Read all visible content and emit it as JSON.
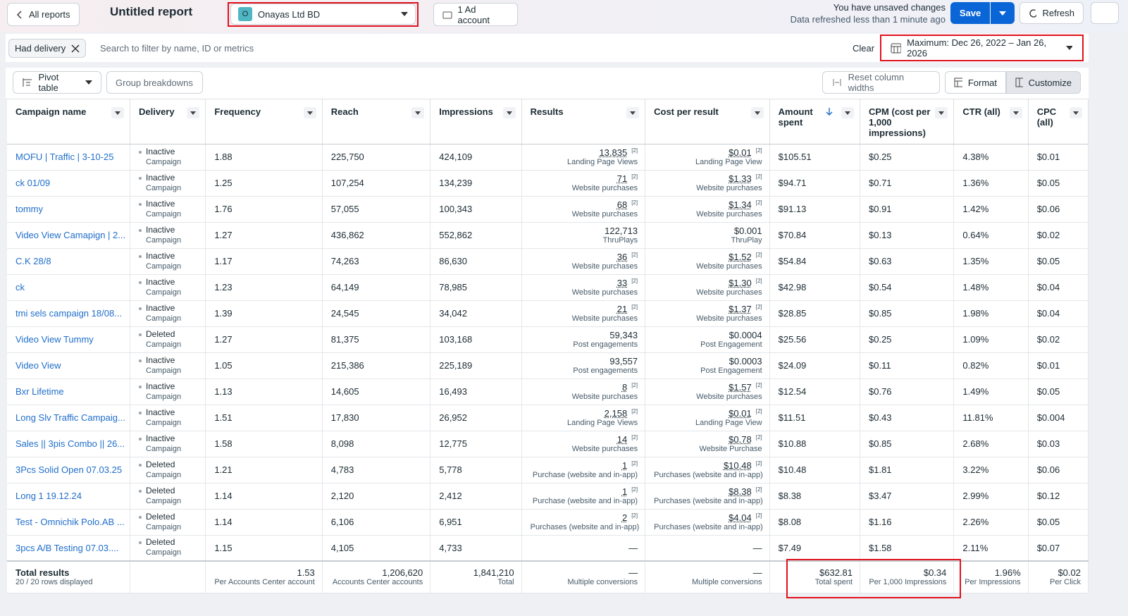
{
  "header": {
    "back": "All reports",
    "title": "Untitled report",
    "account_badge": "O",
    "account": "Onayas Ltd BD",
    "ad_account": "1 Ad account",
    "unsaved": "You have unsaved changes",
    "refreshed": "Data refreshed less than 1 minute ago",
    "save": "Save",
    "refresh": "Refresh"
  },
  "filter": {
    "chip": "Had delivery",
    "placeholder": "Search to filter by name, ID or metrics",
    "clear": "Clear",
    "date": "Maximum: Dec 26, 2022 – Jan 26, 2026"
  },
  "toolbar": {
    "pivot": "Pivot table",
    "group": "Group breakdowns",
    "reset": "Reset column widths",
    "format": "Format",
    "customize": "Customize"
  },
  "table": {
    "columns": [
      "Campaign name",
      "Delivery",
      "Frequency",
      "Reach",
      "Impressions",
      "Results",
      "Cost per result",
      "Amount spent",
      "CPM (cost per 1,000 impressions)",
      "CTR (all)",
      "CPC (all)"
    ],
    "rows": [
      {
        "name": "MOFU | Traffic | 3-10-25",
        "delivery": "Inactive",
        "delivery_sub": "Campaign",
        "frequency": "1.88",
        "reach": "225,750",
        "impressions": "424,109",
        "results": {
          "value": "13,835",
          "note": "[2]",
          "label": "Landing Page Views"
        },
        "cost": {
          "value": "$0.01",
          "note": "[2]",
          "label": "Landing Page View"
        },
        "amount": "$105.51",
        "cpm": "$0.25",
        "ctr": "4.38%",
        "cpc": "$0.01"
      },
      {
        "name": "ck 01/09",
        "delivery": "Inactive",
        "delivery_sub": "Campaign",
        "frequency": "1.25",
        "reach": "107,254",
        "impressions": "134,239",
        "results": {
          "value": "71",
          "note": "[2]",
          "label": "Website purchases"
        },
        "cost": {
          "value": "$1.33",
          "note": "[2]",
          "label": "Website purchases"
        },
        "amount": "$94.71",
        "cpm": "$0.71",
        "ctr": "1.36%",
        "cpc": "$0.05"
      },
      {
        "name": "tommy",
        "delivery": "Inactive",
        "delivery_sub": "Campaign",
        "frequency": "1.76",
        "reach": "57,055",
        "impressions": "100,343",
        "results": {
          "value": "68",
          "note": "[2]",
          "label": "Website purchases"
        },
        "cost": {
          "value": "$1.34",
          "note": "[2]",
          "label": "Website purchases"
        },
        "amount": "$91.13",
        "cpm": "$0.91",
        "ctr": "1.42%",
        "cpc": "$0.06"
      },
      {
        "name": "Video View Camapign | 2...",
        "delivery": "Inactive",
        "delivery_sub": "Campaign",
        "frequency": "1.27",
        "reach": "436,862",
        "impressions": "552,862",
        "results": {
          "value": "122,713",
          "label": "ThruPlays"
        },
        "cost": {
          "value": "$0.001",
          "label": "ThruPlay"
        },
        "amount": "$70.84",
        "cpm": "$0.13",
        "ctr": "0.64%",
        "cpc": "$0.02"
      },
      {
        "name": "C.K 28/8",
        "delivery": "Inactive",
        "delivery_sub": "Campaign",
        "frequency": "1.17",
        "reach": "74,263",
        "impressions": "86,630",
        "results": {
          "value": "36",
          "note": "[2]",
          "label": "Website purchases"
        },
        "cost": {
          "value": "$1.52",
          "note": "[2]",
          "label": "Website purchases"
        },
        "amount": "$54.84",
        "cpm": "$0.63",
        "ctr": "1.35%",
        "cpc": "$0.05"
      },
      {
        "name": "ck",
        "delivery": "Inactive",
        "delivery_sub": "Campaign",
        "frequency": "1.23",
        "reach": "64,149",
        "impressions": "78,985",
        "results": {
          "value": "33",
          "note": "[2]",
          "label": "Website purchases"
        },
        "cost": {
          "value": "$1.30",
          "note": "[2]",
          "label": "Website purchases"
        },
        "amount": "$42.98",
        "cpm": "$0.54",
        "ctr": "1.48%",
        "cpc": "$0.04"
      },
      {
        "name": "tmi sels campaign 18/08...",
        "delivery": "Inactive",
        "delivery_sub": "Campaign",
        "frequency": "1.39",
        "reach": "24,545",
        "impressions": "34,042",
        "results": {
          "value": "21",
          "note": "[2]",
          "label": "Website purchases"
        },
        "cost": {
          "value": "$1.37",
          "note": "[2]",
          "label": "Website purchases"
        },
        "amount": "$28.85",
        "cpm": "$0.85",
        "ctr": "1.98%",
        "cpc": "$0.04"
      },
      {
        "name": "Video View Tummy",
        "delivery": "Deleted",
        "delivery_sub": "Campaign",
        "frequency": "1.27",
        "reach": "81,375",
        "impressions": "103,168",
        "results": {
          "value": "59,343",
          "label": "Post engagements"
        },
        "cost": {
          "value": "$0.0004",
          "label": "Post Engagement"
        },
        "amount": "$25.56",
        "cpm": "$0.25",
        "ctr": "1.09%",
        "cpc": "$0.02"
      },
      {
        "name": "Video View",
        "delivery": "Inactive",
        "delivery_sub": "Campaign",
        "frequency": "1.05",
        "reach": "215,386",
        "impressions": "225,189",
        "results": {
          "value": "93,557",
          "label": "Post engagements"
        },
        "cost": {
          "value": "$0.0003",
          "label": "Post Engagement"
        },
        "amount": "$24.09",
        "cpm": "$0.11",
        "ctr": "0.82%",
        "cpc": "$0.01"
      },
      {
        "name": "Bxr Lifetime",
        "delivery": "Inactive",
        "delivery_sub": "Campaign",
        "frequency": "1.13",
        "reach": "14,605",
        "impressions": "16,493",
        "results": {
          "value": "8",
          "note": "[2]",
          "label": "Website purchases"
        },
        "cost": {
          "value": "$1.57",
          "note": "[2]",
          "label": "Website purchases"
        },
        "amount": "$12.54",
        "cpm": "$0.76",
        "ctr": "1.49%",
        "cpc": "$0.05"
      },
      {
        "name": "Long Slv Traffic Campaig...",
        "delivery": "Inactive",
        "delivery_sub": "Campaign",
        "frequency": "1.51",
        "reach": "17,830",
        "impressions": "26,952",
        "results": {
          "value": "2,158",
          "note": "[2]",
          "label": "Landing Page Views"
        },
        "cost": {
          "value": "$0.01",
          "note": "[2]",
          "label": "Landing Page View"
        },
        "amount": "$11.51",
        "cpm": "$0.43",
        "ctr": "11.81%",
        "cpc": "$0.004"
      },
      {
        "name": "Sales || 3pis Combo || 26...",
        "delivery": "Inactive",
        "delivery_sub": "Campaign",
        "frequency": "1.58",
        "reach": "8,098",
        "impressions": "12,775",
        "results": {
          "value": "14",
          "note": "[2]",
          "label": "Website purchases"
        },
        "cost": {
          "value": "$0.78",
          "note": "[2]",
          "label": "Website Purchase"
        },
        "amount": "$10.88",
        "cpm": "$0.85",
        "ctr": "2.68%",
        "cpc": "$0.03"
      },
      {
        "name": "3Pcs Solid Open 07.03.25",
        "delivery": "Deleted",
        "delivery_sub": "Campaign",
        "frequency": "1.21",
        "reach": "4,783",
        "impressions": "5,778",
        "results": {
          "value": "1",
          "note": "[2]",
          "label": "Purchase (website and in-app)"
        },
        "cost": {
          "value": "$10.48",
          "note": "[2]",
          "label": "Purchases (website and in-app)"
        },
        "amount": "$10.48",
        "cpm": "$1.81",
        "ctr": "3.22%",
        "cpc": "$0.06"
      },
      {
        "name": "Long 1 19.12.24",
        "delivery": "Deleted",
        "delivery_sub": "Campaign",
        "frequency": "1.14",
        "reach": "2,120",
        "impressions": "2,412",
        "results": {
          "value": "1",
          "note": "[2]",
          "label": "Purchase (website and in-app)"
        },
        "cost": {
          "value": "$8.38",
          "note": "[2]",
          "label": "Purchases (website and in-app)"
        },
        "amount": "$8.38",
        "cpm": "$3.47",
        "ctr": "2.99%",
        "cpc": "$0.12"
      },
      {
        "name": "Test - Omnichik Polo.AB ...",
        "delivery": "Deleted",
        "delivery_sub": "Campaign",
        "frequency": "1.14",
        "reach": "6,106",
        "impressions": "6,951",
        "results": {
          "value": "2",
          "note": "[2]",
          "label": "Purchases (website and in-app)"
        },
        "cost": {
          "value": "$4.04",
          "note": "[2]",
          "label": "Purchases (website and in-app)"
        },
        "amount": "$8.08",
        "cpm": "$1.16",
        "ctr": "2.26%",
        "cpc": "$0.05"
      },
      {
        "name": "3pcs A/B Testing 07.03....",
        "delivery": "Deleted",
        "delivery_sub": "Campaign",
        "frequency": "1.15",
        "reach": "4,105",
        "impressions": "4,733",
        "results": {
          "value": "—"
        },
        "cost": {
          "value": "—"
        },
        "amount": "$7.49",
        "cpm": "$1.58",
        "ctr": "2.11%",
        "cpc": "$0.07"
      }
    ],
    "totals": {
      "title": "Total results",
      "subtitle": "20 / 20 rows displayed",
      "frequency": {
        "value": "1.53",
        "label": "Per Accounts Center account"
      },
      "reach": {
        "value": "1,206,620",
        "label": "Accounts Center accounts"
      },
      "impressions": {
        "value": "1,841,210",
        "label": "Total"
      },
      "results": {
        "value": "—",
        "label": "Multiple conversions"
      },
      "cost": {
        "value": "—",
        "label": "Multiple conversions"
      },
      "amount": {
        "value": "$632.81",
        "label": "Total spent"
      },
      "cpm": {
        "value": "$0.34",
        "label": "Per 1,000 Impressions"
      },
      "ctr": {
        "value": "1.96%",
        "label": "Per Impressions"
      },
      "cpc": {
        "value": "$0.02",
        "label": "Per Click"
      }
    }
  }
}
